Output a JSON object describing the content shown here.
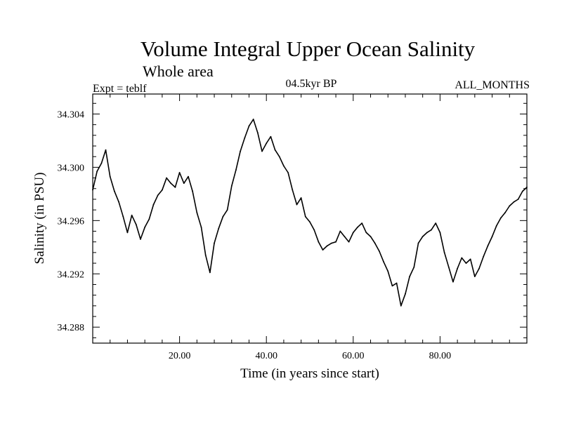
{
  "chart_data": {
    "type": "line",
    "title": "Volume Integral Upper Ocean Salinity",
    "subtitle": "Whole area",
    "experiment_label": "Expt = teblf",
    "period_label": "04.5kyr BP",
    "months_label": "ALL_MONTHS",
    "xlabel": "Time (in years since start)",
    "ylabel": "Salinity (in PSU)",
    "xlim": [
      0,
      100
    ],
    "ylim": [
      34.2868,
      34.3055
    ],
    "x_ticks": [
      20,
      40,
      60,
      80
    ],
    "x_tick_labels": [
      "20.00",
      "40.00",
      "60.00",
      "80.00"
    ],
    "y_ticks": [
      34.288,
      34.292,
      34.296,
      34.3,
      34.304
    ],
    "y_tick_labels": [
      "34.288",
      "34.292",
      "34.296",
      "34.300",
      "34.304"
    ],
    "grid": false,
    "series": [
      {
        "name": "Salinity",
        "x": [
          0,
          1,
          2,
          3,
          4,
          5,
          6,
          7,
          8,
          9,
          10,
          11,
          12,
          13,
          14,
          15,
          16,
          17,
          18,
          19,
          20,
          21,
          22,
          23,
          24,
          25,
          26,
          27,
          28,
          29,
          30,
          31,
          32,
          33,
          34,
          35,
          36,
          37,
          38,
          39,
          40,
          41,
          42,
          43,
          44,
          45,
          46,
          47,
          48,
          49,
          50,
          51,
          52,
          53,
          54,
          55,
          56,
          57,
          58,
          59,
          60,
          61,
          62,
          63,
          64,
          65,
          66,
          67,
          68,
          69,
          70,
          71,
          72,
          73,
          74,
          75,
          76,
          77,
          78,
          79,
          80,
          81,
          82,
          83,
          84,
          85,
          86,
          87,
          88,
          89,
          90,
          91,
          92,
          93,
          94,
          95,
          96,
          97,
          98,
          99,
          100
        ],
        "values": [
          34.2983,
          34.2997,
          34.3003,
          34.3013,
          34.2993,
          34.2982,
          34.2974,
          34.2963,
          34.2951,
          34.2964,
          34.2957,
          34.2946,
          34.2955,
          34.2961,
          34.2972,
          34.2979,
          34.2983,
          34.2992,
          34.2988,
          34.2985,
          34.2996,
          34.2988,
          34.2993,
          34.2982,
          34.2966,
          34.2955,
          34.2934,
          34.2921,
          34.2943,
          34.2954,
          34.2963,
          34.2968,
          34.2986,
          34.2998,
          34.3012,
          34.3022,
          34.3031,
          34.3036,
          34.3026,
          34.3012,
          34.3018,
          34.3023,
          34.3013,
          34.3008,
          34.3001,
          34.2996,
          34.2983,
          34.2972,
          34.2977,
          34.2963,
          34.2959,
          34.2953,
          34.2944,
          34.2938,
          34.2941,
          34.2943,
          34.2944,
          34.2952,
          34.2948,
          34.2944,
          34.2951,
          34.2955,
          34.2958,
          34.2951,
          34.2948,
          34.2943,
          34.2937,
          34.2929,
          34.2922,
          34.2911,
          34.2913,
          34.2896,
          34.2905,
          34.2918,
          34.2925,
          34.2943,
          34.2948,
          34.2951,
          34.2953,
          34.2958,
          34.2951,
          34.2936,
          34.2925,
          34.2914,
          34.2924,
          34.2932,
          34.2928,
          34.2931,
          34.2918,
          34.2924,
          34.2933,
          34.2941,
          34.2948,
          34.2956,
          34.2962,
          34.2966,
          34.2971,
          34.2974,
          34.2976,
          34.2982,
          34.2985
        ]
      }
    ]
  }
}
